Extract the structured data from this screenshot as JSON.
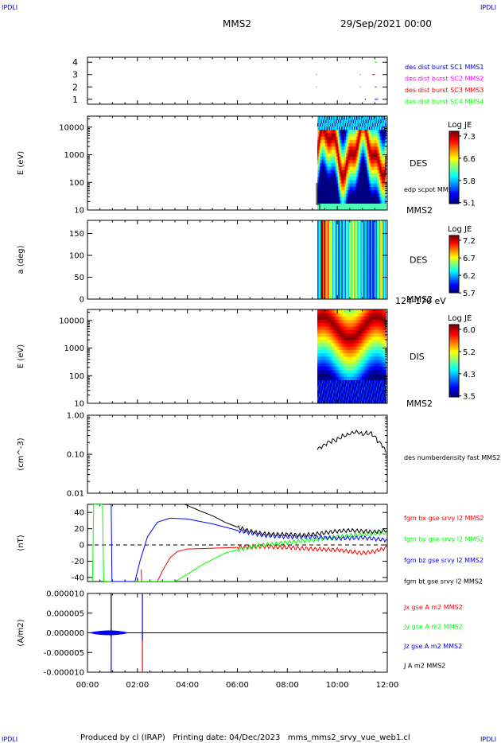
{
  "corner": {
    "tl": "IPDLI",
    "tr": "IPDLI",
    "bl": "IPDLI",
    "br": "IPDLI"
  },
  "header": {
    "spacecraft": "MMS2",
    "date": "29/Sep/2021 00:00"
  },
  "footer": {
    "text": "Produced by cl (IRAP)   Printing date: 04/Dec/2023   mms_mms2_srvy_vue_web1.cl"
  },
  "colors": {
    "blue": "#0000ff",
    "magenta": "#ff00ff",
    "red": "#ff0000",
    "green": "#00ff00",
    "black": "#000000"
  },
  "chart_data": [
    {
      "type": "scatter",
      "panel": "availability",
      "yticks": [
        "1",
        "2",
        "3",
        "4"
      ],
      "ylim": [
        0.6,
        4.4
      ],
      "series": [
        {
          "name": "des dist burst SC1 MMS1",
          "color": "#0000ff",
          "level": 1,
          "x": [
            11.1,
            11.5,
            11.6
          ],
          "len": [
            0.04,
            0.08,
            0.04
          ]
        },
        {
          "name": "des dist burst SC2 MMS2",
          "color": "#ff00ff",
          "level": 2,
          "x": [
            9.15,
            10.9,
            11.5
          ],
          "len": [
            0.03,
            0.03,
            0.08
          ]
        },
        {
          "name": "des dist burst SC3 MMS3",
          "color": "#ff0000",
          "level": 3,
          "x": [
            9.15,
            10.9,
            11.4
          ],
          "len": [
            0.03,
            0.03,
            0.1
          ]
        },
        {
          "name": "des dist burst SC4 MMS4",
          "color": "#00ff00",
          "level": 4,
          "x": [
            11.5
          ],
          "len": [
            0.08
          ]
        }
      ]
    },
    {
      "type": "heatmap",
      "panel": "des-energy",
      "ylabel": "E (eV)",
      "yticks": [
        "10",
        "100",
        "1000",
        "10000"
      ],
      "ylim": [
        10,
        25000
      ],
      "label": "DES",
      "sublabel": "MMS2",
      "overlay": "edp scpot MMS2",
      "x_start": 9.2,
      "x_end": 11.95,
      "cbar_title": "Log JE",
      "cbar_ticks": [
        "7.3",
        "6.6",
        "5.8",
        "5.1"
      ]
    },
    {
      "type": "heatmap",
      "panel": "des-pitch",
      "ylabel": "a (deg)",
      "yticks": [
        "0",
        "50",
        "100",
        "150"
      ],
      "ylim": [
        0,
        180
      ],
      "label": "DES",
      "sublabel": "MMS2",
      "extra": "124-170 eV",
      "x_start": 9.2,
      "x_end": 11.95,
      "cbar_title": "Log JE",
      "cbar_ticks": [
        "7.2",
        "6.7",
        "6.2",
        "5.7"
      ]
    },
    {
      "type": "heatmap",
      "panel": "dis-energy",
      "ylabel": "E (eV)",
      "yticks": [
        "10",
        "100",
        "1000",
        "10000"
      ],
      "ylim": [
        10,
        25000
      ],
      "label": "DIS",
      "sublabel": "MMS2",
      "x_start": 9.2,
      "x_end": 11.95,
      "cbar_title": "Log JE",
      "cbar_ticks": [
        "6.0",
        "5.2",
        "4.3",
        "3.5"
      ]
    },
    {
      "type": "line",
      "panel": "density",
      "ylabel": "(cm^-3)",
      "yticks": [
        "0.01",
        "0.10",
        "1.00"
      ],
      "ylim": [
        0.01,
        1.0
      ],
      "log": true,
      "series": [
        {
          "name": "des numberdensity fast MMS2",
          "color": "#000000",
          "x": [
            9.2,
            9.4,
            9.6,
            9.8,
            10.0,
            10.2,
            10.4,
            10.6,
            10.8,
            11.0,
            11.2,
            11.4,
            11.6,
            11.8,
            11.95
          ],
          "y": [
            0.13,
            0.15,
            0.19,
            0.22,
            0.24,
            0.3,
            0.33,
            0.38,
            0.4,
            0.34,
            0.36,
            0.33,
            0.22,
            0.16,
            0.11
          ]
        }
      ]
    },
    {
      "type": "line",
      "panel": "fgm",
      "ylabel": "(nT)",
      "yticks": [
        "-40",
        "-20",
        "0",
        "20",
        "40"
      ],
      "ylim": [
        -45,
        50
      ],
      "series": [
        {
          "name": "fgm bx gse srvy l2 MMS2",
          "color": "#ff0000",
          "x": [
            2.15,
            2.17,
            2.8,
            3.0,
            3.3,
            3.6,
            4.0,
            5.0,
            6.0,
            7.0,
            8.0,
            9.0,
            10.0,
            11.0,
            11.5,
            12.0
          ],
          "y": [
            -30,
            -45,
            -45,
            -32,
            -16,
            -8,
            -5,
            -4,
            -3,
            -2,
            -3,
            -5,
            -6,
            -10,
            -8,
            -3
          ]
        },
        {
          "name": "fgm by gse srvy l2 MMS2",
          "color": "#00ff00",
          "x": [
            0.2,
            0.25,
            0.3,
            0.6,
            0.65,
            0.7,
            3.5,
            4.0,
            4.5,
            5.0,
            5.5,
            6.0,
            7.0,
            8.0,
            9.0,
            10.0,
            11.0,
            12.0
          ],
          "y": [
            -45,
            50,
            50,
            50,
            -45,
            -45,
            -45,
            -36,
            -26,
            -18,
            -10,
            -6,
            0,
            3,
            6,
            10,
            13,
            15
          ]
        },
        {
          "name": "fgm bz gse srvy l2 MMS2",
          "color": "#0000ff",
          "x": [
            0.95,
            0.98,
            1.9,
            2.1,
            2.4,
            2.8,
            3.3,
            4.0,
            5.0,
            6.0,
            7.0,
            8.0,
            9.0,
            10.0,
            11.0,
            12.0
          ],
          "y": [
            50,
            -45,
            -45,
            -20,
            10,
            28,
            33,
            32,
            26,
            18,
            12,
            10,
            10,
            8,
            9,
            6
          ]
        },
        {
          "name": "fgm bt gse srvy l2 MMS2",
          "color": "#000000",
          "x": [
            3.9,
            4.5,
            5.0,
            5.5,
            6.0,
            6.5,
            7.0,
            7.5,
            8.0,
            8.5,
            9.0,
            9.5,
            10.0,
            10.5,
            11.0,
            11.5,
            12.0
          ],
          "y": [
            50,
            42,
            36,
            28,
            22,
            17,
            14,
            13,
            13,
            12,
            13,
            15,
            17,
            18,
            17,
            16,
            18
          ]
        }
      ]
    },
    {
      "type": "line",
      "panel": "current",
      "ylabel": "(A/m2)",
      "yticks": [
        "-0.000010",
        "-0.000005",
        "0.000000",
        "0.000005",
        "0.000010"
      ],
      "ylim": [
        -1e-05,
        1e-05
      ],
      "series": [
        {
          "name": "Jx gse A m2 MMS2",
          "color": "#ff0000",
          "spikes": [
            [
              2.2,
              -1e-05,
              0.0
            ]
          ]
        },
        {
          "name": "Jy gse A m2 MMS2",
          "color": "#00ff00",
          "spikes": []
        },
        {
          "name": "Jz gse A m2 MMS2",
          "color": "#0000ff",
          "spikes": [
            [
              0.95,
              -1e-05,
              1e-06
            ],
            [
              2.2,
              -2e-06,
              1e-05
            ]
          ]
        },
        {
          "name": "J A m2 MMS2",
          "color": "#000000",
          "spikes": [
            [
              0.95,
              -1e-06,
              1e-05
            ]
          ]
        }
      ]
    }
  ],
  "x_axis": {
    "ticks": [
      "00:00",
      "02:00",
      "04:00",
      "06:00",
      "08:00",
      "10:00",
      "12:00"
    ],
    "xlim": [
      0,
      12
    ]
  }
}
